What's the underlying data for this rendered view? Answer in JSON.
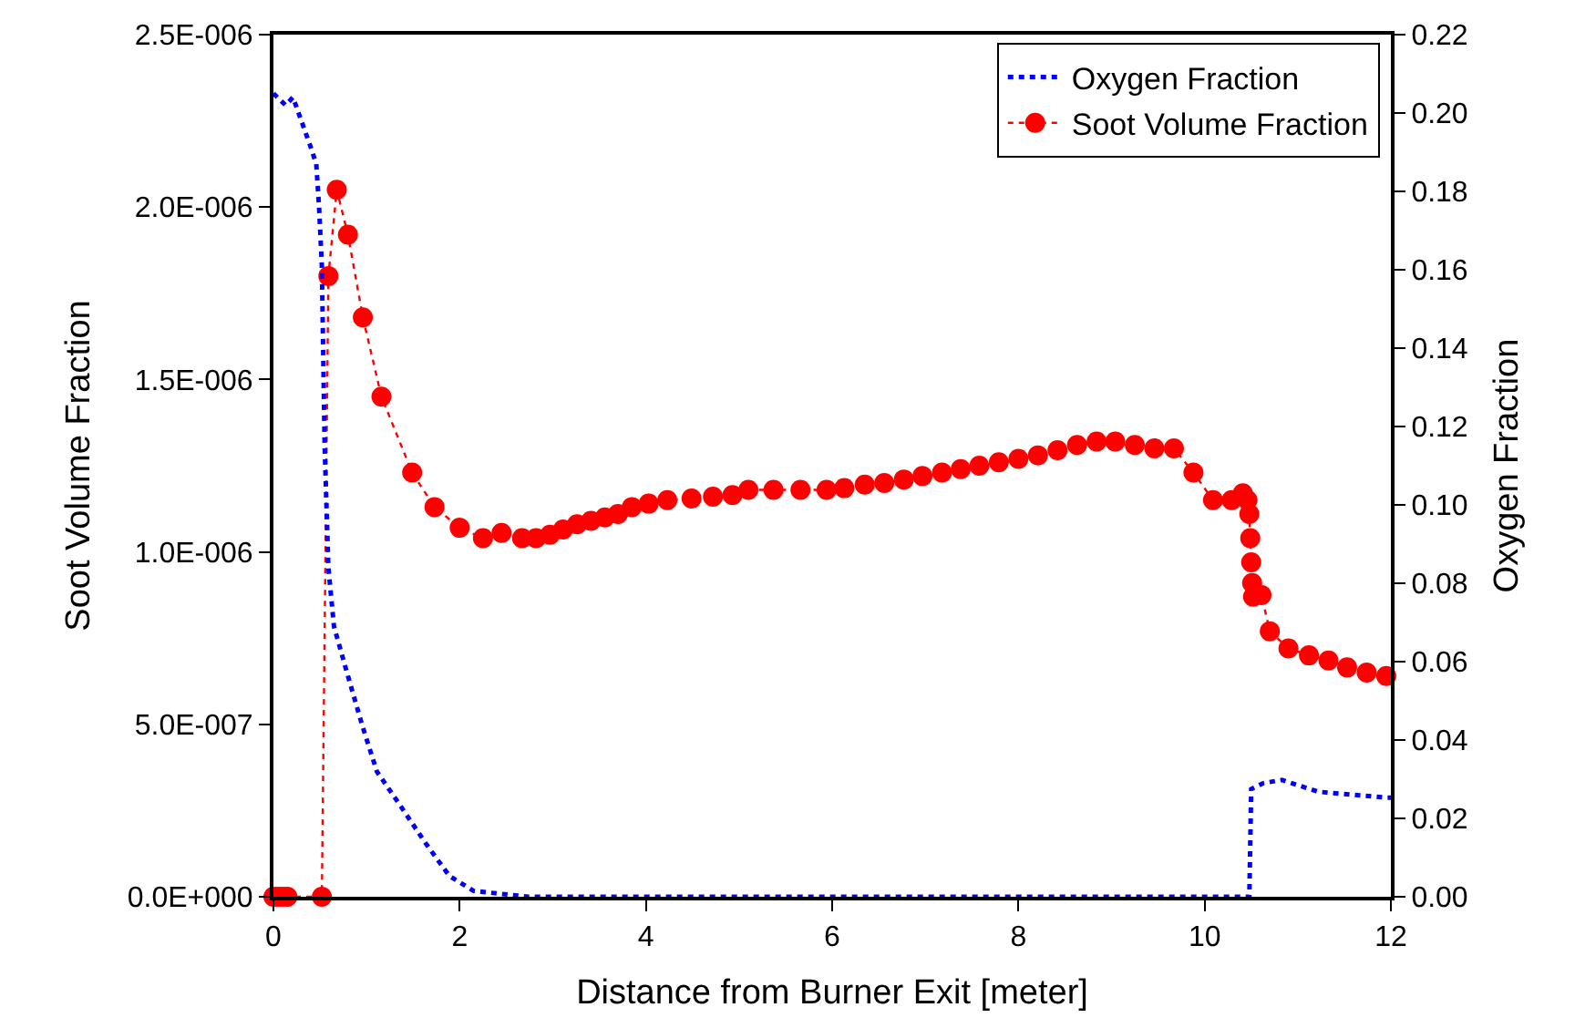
{
  "chart_data": {
    "type": "line",
    "xlabel": "Distance from Burner Exit [meter]",
    "ylabel": "Soot Volume Fraction",
    "y2label": "Oxygen Fraction",
    "xlim": [
      0,
      12
    ],
    "xticks": [
      0,
      2,
      4,
      6,
      8,
      10,
      12
    ],
    "ylim": [
      0,
      2.5e-06
    ],
    "yticks": [
      {
        "value": 0,
        "label": "0.0E+000"
      },
      {
        "value": 5e-07,
        "label": "5.0E-007"
      },
      {
        "value": 1e-06,
        "label": "1.0E-006"
      },
      {
        "value": 1.5e-06,
        "label": "1.5E-006"
      },
      {
        "value": 2e-06,
        "label": "2.0E-006"
      },
      {
        "value": 2.5e-06,
        "label": "2.5E-006"
      }
    ],
    "y2lim": [
      0,
      0.22
    ],
    "y2ticks": [
      {
        "value": 0,
        "label": "0.00"
      },
      {
        "value": 0.02,
        "label": "0.02"
      },
      {
        "value": 0.04,
        "label": "0.04"
      },
      {
        "value": 0.06,
        "label": "0.06"
      },
      {
        "value": 0.08,
        "label": "0.08"
      },
      {
        "value": 0.1,
        "label": "0.10"
      },
      {
        "value": 0.12,
        "label": "0.12"
      },
      {
        "value": 0.14,
        "label": "0.14"
      },
      {
        "value": 0.16,
        "label": "0.16"
      },
      {
        "value": 0.18,
        "label": "0.18"
      },
      {
        "value": 0.2,
        "label": "0.20"
      },
      {
        "value": 0.22,
        "label": "0.22"
      }
    ],
    "legend": "top right",
    "series": [
      {
        "name": "Oxygen Fraction",
        "color": "#0000ff",
        "axis": "y2",
        "marker": "none",
        "line_style": "dotted",
        "x": [
          0,
          0.13,
          0.21,
          0.39,
          0.46,
          0.49,
          0.52,
          0.55,
          0.59,
          0.65,
          0.78,
          0.95,
          1.11,
          1.37,
          1.63,
          1.89,
          2.15,
          2.74,
          10.48,
          10.5,
          10.63,
          10.83,
          11.22,
          11.95,
          12
        ],
        "values": [
          0.205,
          0.202,
          0.204,
          0.192,
          0.187,
          0.176,
          0.161,
          0.115,
          0.084,
          0.069,
          0.058,
          0.044,
          0.032,
          0.023,
          0.0138,
          0.0053,
          0.0015,
          0,
          0,
          0.0275,
          0.029,
          0.0298,
          0.0268,
          0.0253,
          0.0253
        ]
      },
      {
        "name": "Soot Volume Fraction",
        "color": "#ff0000",
        "axis": "y",
        "marker": "circle",
        "line_style": "dotted",
        "x": [
          0,
          0.05,
          0.1,
          0.15,
          0.52,
          0.59,
          0.68,
          0.8,
          0.96,
          1.16,
          1.49,
          1.73,
          2.0,
          2.25,
          2.45,
          2.67,
          2.82,
          2.97,
          3.11,
          3.26,
          3.41,
          3.56,
          3.7,
          3.85,
          4.03,
          4.23,
          4.49,
          4.72,
          4.93,
          5.1,
          5.37,
          5.66,
          5.94,
          6.13,
          6.35,
          6.56,
          6.77,
          6.97,
          7.18,
          7.38,
          7.58,
          7.79,
          8.0,
          8.21,
          8.42,
          8.63,
          8.84,
          9.04,
          9.25,
          9.46,
          9.67,
          9.88,
          10.09,
          10.29,
          10.41,
          10.46,
          10.48,
          10.49,
          10.5,
          10.51,
          10.52,
          10.61,
          10.7,
          10.9,
          11.12,
          11.33,
          11.53,
          11.74,
          11.95
        ],
        "values": [
          0,
          0,
          0,
          0,
          0,
          1.8e-06,
          2.05e-06,
          1.92e-06,
          1.68e-06,
          1.45e-06,
          1.23e-06,
          1.13e-06,
          1.07e-06,
          1.04e-06,
          1.055e-06,
          1.04e-06,
          1.04e-06,
          1.05e-06,
          1.065e-06,
          1.08e-06,
          1.09e-06,
          1.1e-06,
          1.11e-06,
          1.13e-06,
          1.14e-06,
          1.15e-06,
          1.155e-06,
          1.16e-06,
          1.165e-06,
          1.18e-06,
          1.18e-06,
          1.18e-06,
          1.18e-06,
          1.185e-06,
          1.195e-06,
          1.2e-06,
          1.21e-06,
          1.22e-06,
          1.23e-06,
          1.24e-06,
          1.25e-06,
          1.26e-06,
          1.27e-06,
          1.28e-06,
          1.295e-06,
          1.31e-06,
          1.32e-06,
          1.32e-06,
          1.31e-06,
          1.3e-06,
          1.3e-06,
          1.23e-06,
          1.15e-06,
          1.15e-06,
          1.17e-06,
          1.15e-06,
          1.11e-06,
          1.04e-06,
          9.7e-07,
          9.1e-07,
          8.7e-07,
          8.75e-07,
          7.7e-07,
          7.2e-07,
          7e-07,
          6.85e-07,
          6.65e-07,
          6.5e-07,
          6.4e-07
        ]
      }
    ]
  }
}
